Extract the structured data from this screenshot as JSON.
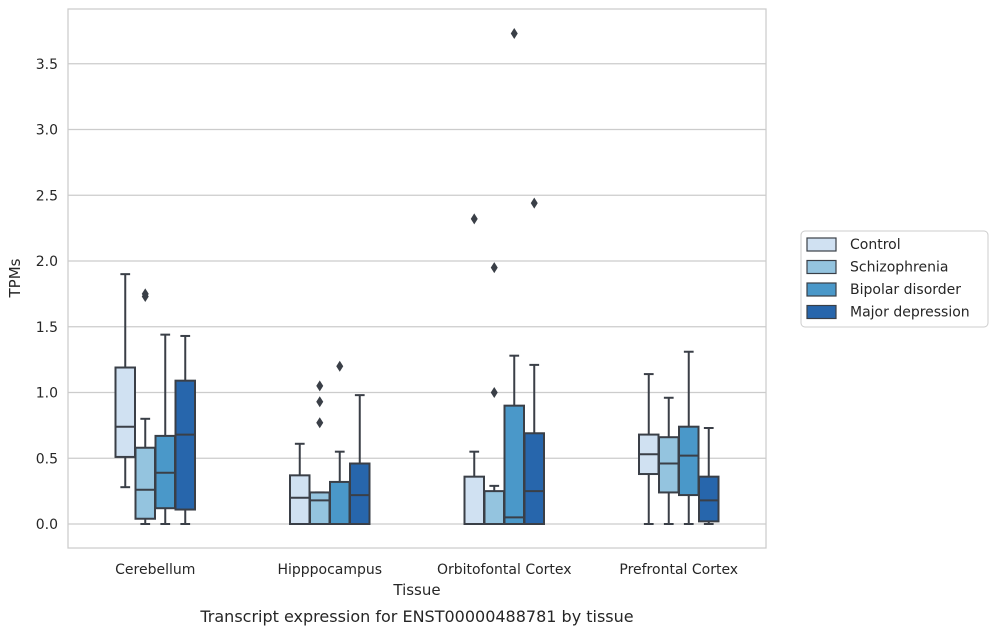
{
  "chart_data": {
    "type": "box",
    "xlabel": "Tissue",
    "ylabel": "TPMs",
    "caption": "Transcript expression for ENST00000488781 by tissue",
    "ylim": [
      -0.18,
      3.95
    ],
    "yticks": [
      0.0,
      0.5,
      1.0,
      1.5,
      2.0,
      2.5,
      3.0,
      3.5
    ],
    "ytick_labels": [
      "0.0",
      "0.5",
      "1.0",
      "1.5",
      "2.0",
      "2.5",
      "3.0",
      "3.5"
    ],
    "grid": "horizontal",
    "legend_position": "right",
    "categories": [
      "Cerebellum",
      "Hipppocampus",
      "Orbitofontal Cortex",
      "Prefrontal Cortex"
    ],
    "series": [
      {
        "name": "Control",
        "color": "#d0e1f2",
        "boxes": [
          {
            "whislo": 0.28,
            "q1": 0.51,
            "med": 0.74,
            "q3": 1.19,
            "whishi": 1.9,
            "fliers": []
          },
          {
            "whislo": 0.0,
            "q1": 0.0,
            "med": 0.2,
            "q3": 0.37,
            "whishi": 0.61,
            "fliers": []
          },
          {
            "whislo": 0.0,
            "q1": 0.0,
            "med": 0.0,
            "q3": 0.36,
            "whishi": 0.55,
            "fliers": [
              2.32
            ]
          },
          {
            "whislo": 0.0,
            "q1": 0.38,
            "med": 0.53,
            "q3": 0.68,
            "whishi": 1.14,
            "fliers": []
          }
        ]
      },
      {
        "name": "Schizophrenia",
        "color": "#94c4df",
        "boxes": [
          {
            "whislo": 0.0,
            "q1": 0.04,
            "med": 0.26,
            "q3": 0.58,
            "whishi": 0.8,
            "fliers": [
              1.73,
              1.75
            ]
          },
          {
            "whislo": 0.0,
            "q1": 0.0,
            "med": 0.18,
            "q3": 0.24,
            "whishi": 0.24,
            "fliers": [
              0.77,
              0.93,
              1.05
            ]
          },
          {
            "whislo": 0.0,
            "q1": 0.0,
            "med": 0.0,
            "q3": 0.25,
            "whishi": 0.29,
            "fliers": [
              1.0,
              1.95
            ]
          },
          {
            "whislo": 0.0,
            "q1": 0.24,
            "med": 0.46,
            "q3": 0.66,
            "whishi": 0.96,
            "fliers": []
          }
        ]
      },
      {
        "name": "Bipolar disorder",
        "color": "#4a98c9",
        "boxes": [
          {
            "whislo": 0.0,
            "q1": 0.12,
            "med": 0.39,
            "q3": 0.67,
            "whishi": 1.44,
            "fliers": []
          },
          {
            "whislo": 0.0,
            "q1": 0.0,
            "med": 0.0,
            "q3": 0.32,
            "whishi": 0.55,
            "fliers": [
              1.2
            ]
          },
          {
            "whislo": 0.0,
            "q1": 0.0,
            "med": 0.05,
            "q3": 0.9,
            "whishi": 1.28,
            "fliers": [
              3.73
            ]
          },
          {
            "whislo": 0.0,
            "q1": 0.22,
            "med": 0.52,
            "q3": 0.74,
            "whishi": 1.31,
            "fliers": []
          }
        ]
      },
      {
        "name": "Major depression",
        "color": "#2766ac",
        "boxes": [
          {
            "whislo": 0.0,
            "q1": 0.11,
            "med": 0.68,
            "q3": 1.09,
            "whishi": 1.43,
            "fliers": []
          },
          {
            "whislo": 0.0,
            "q1": 0.0,
            "med": 0.22,
            "q3": 0.46,
            "whishi": 0.98,
            "fliers": []
          },
          {
            "whislo": 0.0,
            "q1": 0.0,
            "med": 0.25,
            "q3": 0.69,
            "whishi": 1.21,
            "fliers": [
              2.44
            ]
          },
          {
            "whislo": 0.0,
            "q1": 0.02,
            "med": 0.18,
            "q3": 0.36,
            "whishi": 0.73,
            "fliers": []
          }
        ]
      }
    ]
  }
}
